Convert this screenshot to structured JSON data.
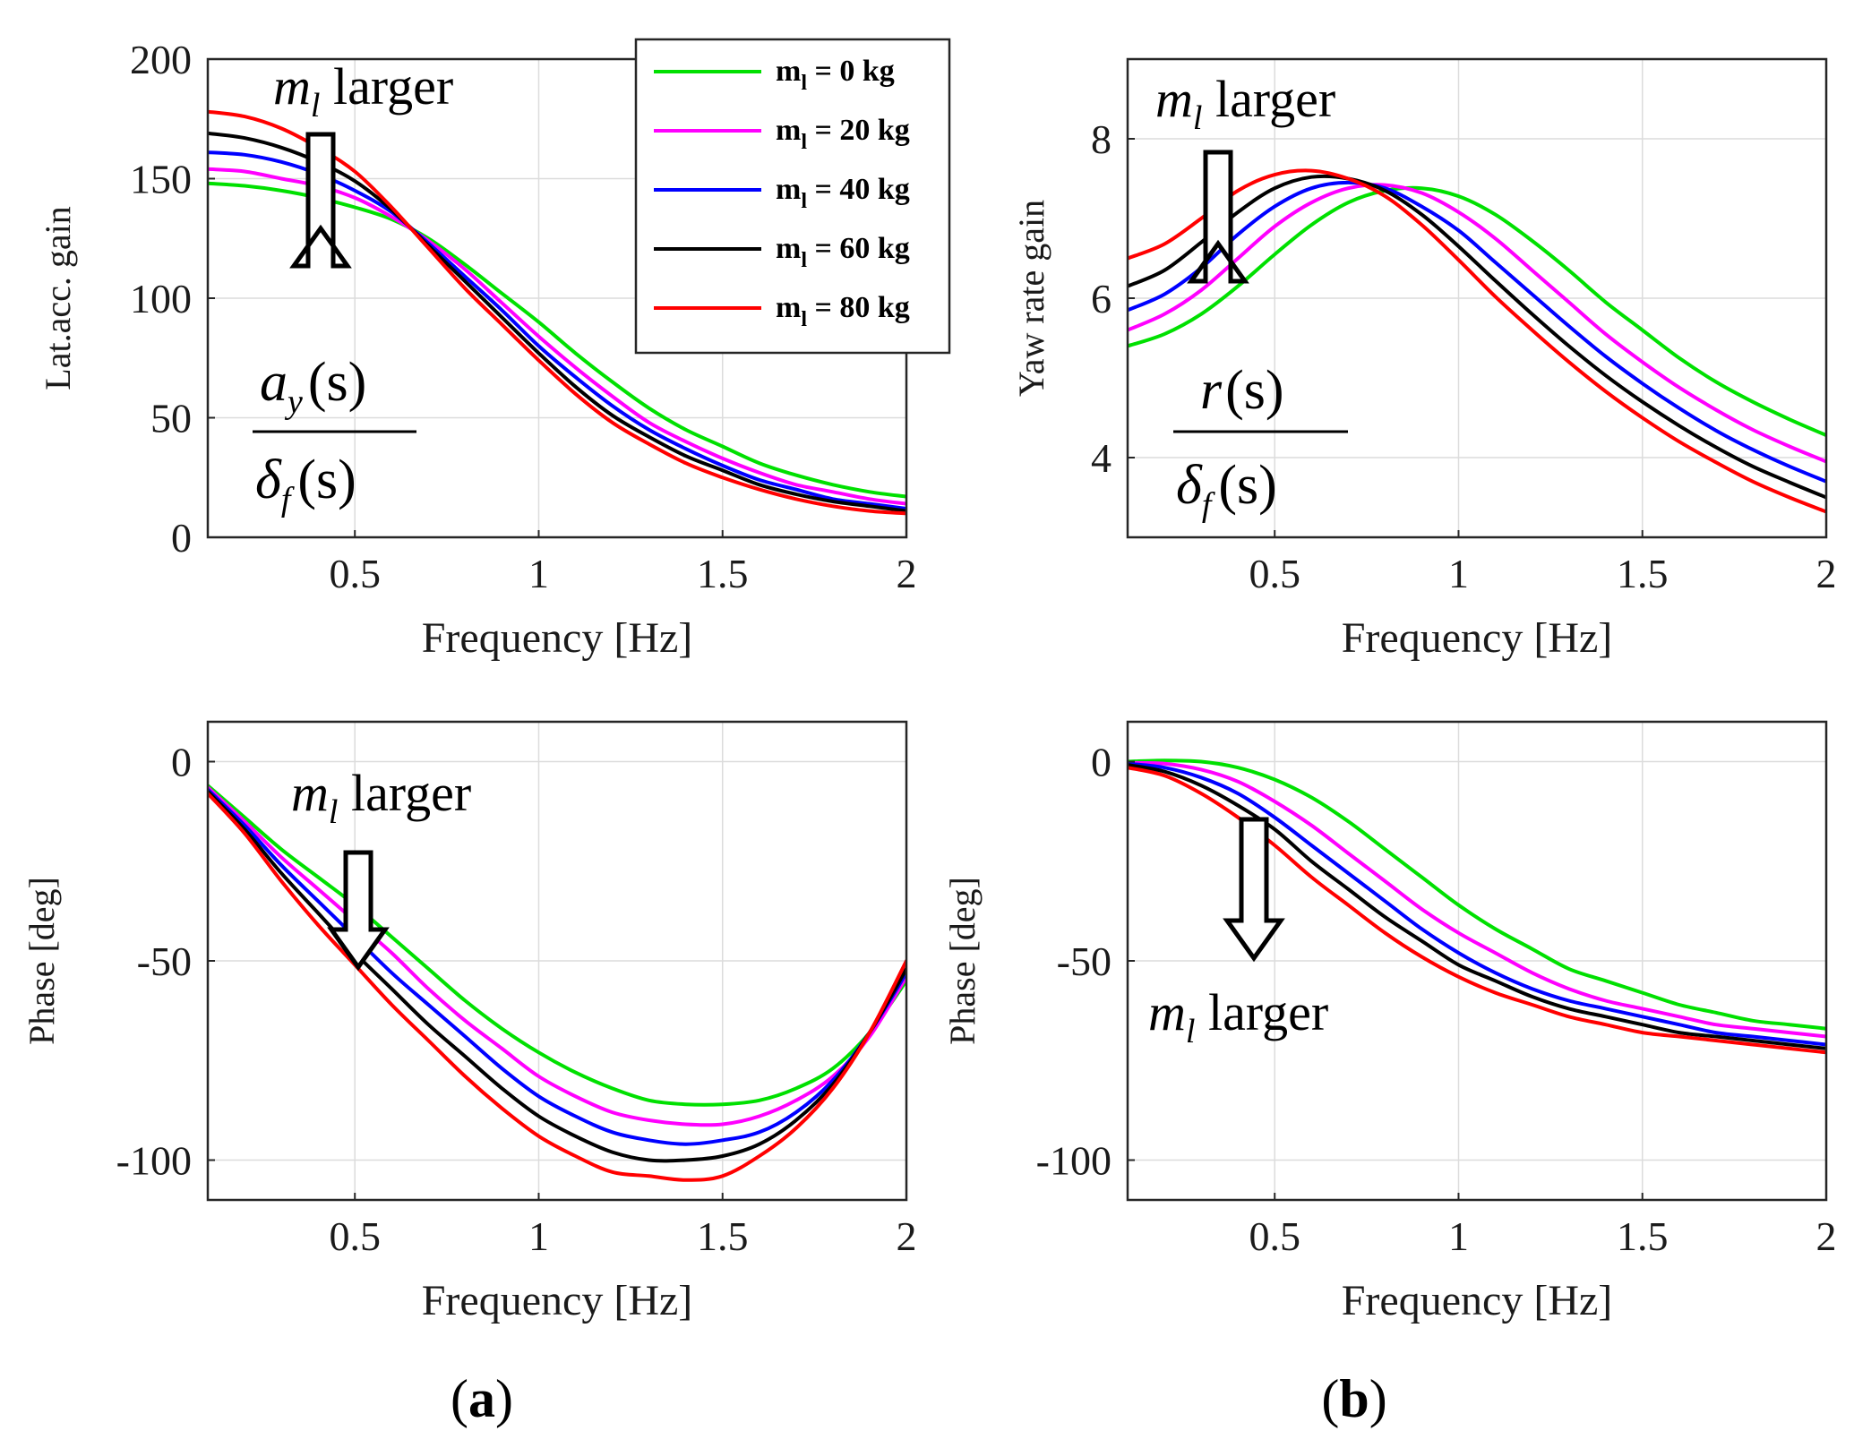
{
  "chart_data": [
    {
      "id": "top-left",
      "type": "line",
      "title": "",
      "xlabel": "Frequency [Hz]",
      "ylabel": "Lat.acc. gain",
      "xlim": [
        0.1,
        2
      ],
      "ylim": [
        0,
        200
      ],
      "xticks": [
        0.5,
        1,
        1.5,
        2
      ],
      "xtick_labels": [
        "0.5",
        "1",
        "1.5",
        "2"
      ],
      "yticks": [
        0,
        50,
        100,
        150,
        200
      ],
      "ytick_labels": [
        "0",
        "50",
        "100",
        "150",
        "200"
      ],
      "grid": true,
      "annotation": {
        "var": "m",
        "sub": "l",
        "text": " larger",
        "arrow": "up"
      },
      "formula": {
        "num": "a",
        "num_sub": "y",
        "num_arg": "(s)",
        "den": "δ",
        "den_sub": "f",
        "den_arg": "(s)"
      },
      "x": [
        0.1,
        0.2,
        0.3,
        0.4,
        0.5,
        0.6,
        0.7,
        0.8,
        0.9,
        1.0,
        1.1,
        1.2,
        1.3,
        1.4,
        1.5,
        1.6,
        1.7,
        1.8,
        1.9,
        2.0
      ],
      "series": [
        {
          "name": "m_l = 0 kg",
          "values": [
            148,
            147,
            145,
            142,
            138,
            133,
            125,
            114,
            102,
            90,
            77,
            65,
            54,
            45,
            38,
            31,
            26,
            22,
            19,
            17
          ]
        },
        {
          "name": "m_l = 20 kg",
          "values": [
            154,
            153,
            150,
            147,
            142,
            134,
            124,
            112,
            98,
            84,
            71,
            59,
            48,
            40,
            33,
            27,
            22,
            19,
            16,
            14
          ]
        },
        {
          "name": "m_l = 40 kg",
          "values": [
            161,
            160,
            157,
            152,
            145,
            136,
            123,
            109,
            95,
            80,
            67,
            55,
            45,
            37,
            30,
            24,
            20,
            16,
            14,
            12
          ]
        },
        {
          "name": "m_l = 60 kg",
          "values": [
            169,
            167,
            163,
            157,
            149,
            137,
            122,
            107,
            92,
            77,
            63,
            51,
            42,
            34,
            28,
            22,
            18,
            15,
            13,
            11
          ]
        },
        {
          "name": "m_l = 80 kg",
          "values": [
            178,
            176,
            171,
            163,
            153,
            138,
            121,
            104,
            89,
            74,
            60,
            48,
            39,
            31,
            25,
            20,
            16,
            13,
            11,
            10
          ]
        }
      ],
      "legend": {
        "placement": "top-right",
        "entries": [
          {
            "var": "m",
            "sub": "l",
            "text": " = 0 kg"
          },
          {
            "var": "m",
            "sub": "l",
            "text": " = 20 kg"
          },
          {
            "var": "m",
            "sub": "l",
            "text": " = 40 kg"
          },
          {
            "var": "m",
            "sub": "l",
            "text": " = 60 kg"
          },
          {
            "var": "m",
            "sub": "l",
            "text": " = 80 kg"
          }
        ]
      }
    },
    {
      "id": "top-right",
      "type": "line",
      "title": "",
      "xlabel": "Frequency [Hz]",
      "ylabel": "Yaw rate gain",
      "xlim": [
        0.1,
        2
      ],
      "ylim": [
        3,
        9
      ],
      "xticks": [
        0.5,
        1,
        1.5,
        2
      ],
      "xtick_labels": [
        "0.5",
        "1",
        "1.5",
        "2"
      ],
      "yticks": [
        4,
        6,
        8
      ],
      "ytick_labels": [
        "4",
        "6",
        "8"
      ],
      "grid": true,
      "annotation": {
        "var": "m",
        "sub": "l",
        "text": " larger",
        "arrow": "up"
      },
      "formula": {
        "num": "r",
        "num_sub": "",
        "num_arg": "(s)",
        "den": "δ",
        "den_sub": "f",
        "den_arg": "(s)"
      },
      "x": [
        0.1,
        0.2,
        0.3,
        0.4,
        0.5,
        0.6,
        0.7,
        0.8,
        0.9,
        1.0,
        1.1,
        1.2,
        1.3,
        1.4,
        1.5,
        1.6,
        1.7,
        1.8,
        1.9,
        2.0
      ],
      "series": [
        {
          "name": "m_l = 0 kg",
          "values": [
            5.4,
            5.55,
            5.8,
            6.15,
            6.55,
            6.92,
            7.2,
            7.35,
            7.38,
            7.28,
            7.05,
            6.72,
            6.35,
            5.95,
            5.6,
            5.25,
            4.95,
            4.7,
            4.48,
            4.28
          ]
        },
        {
          "name": "m_l = 20 kg",
          "values": [
            5.6,
            5.8,
            6.1,
            6.5,
            6.9,
            7.2,
            7.38,
            7.42,
            7.32,
            7.08,
            6.75,
            6.35,
            5.95,
            5.55,
            5.2,
            4.88,
            4.6,
            4.35,
            4.14,
            3.95
          ]
        },
        {
          "name": "m_l = 40 kg",
          "values": [
            5.85,
            6.05,
            6.38,
            6.8,
            7.15,
            7.38,
            7.45,
            7.38,
            7.15,
            6.85,
            6.45,
            6.05,
            5.65,
            5.27,
            4.93,
            4.62,
            4.34,
            4.1,
            3.89,
            3.7
          ]
        },
        {
          "name": "m_l = 60 kg",
          "values": [
            6.15,
            6.35,
            6.7,
            7.08,
            7.38,
            7.52,
            7.5,
            7.35,
            7.05,
            6.65,
            6.22,
            5.8,
            5.4,
            5.03,
            4.7,
            4.4,
            4.13,
            3.89,
            3.69,
            3.5
          ]
        },
        {
          "name": "m_l = 80 kg",
          "values": [
            6.5,
            6.68,
            7.0,
            7.35,
            7.55,
            7.6,
            7.5,
            7.28,
            6.92,
            6.48,
            6.02,
            5.6,
            5.2,
            4.83,
            4.5,
            4.2,
            3.94,
            3.7,
            3.5,
            3.32
          ]
        }
      ]
    },
    {
      "id": "bottom-left",
      "type": "line",
      "title": "",
      "xlabel": "Frequency [Hz]",
      "ylabel": "Phase [deg]",
      "xlim": [
        0.1,
        2
      ],
      "ylim": [
        -110,
        10
      ],
      "xticks": [
        0.5,
        1,
        1.5,
        2
      ],
      "xtick_labels": [
        "0.5",
        "1",
        "1.5",
        "2"
      ],
      "yticks": [
        -100,
        -50,
        0
      ],
      "ytick_labels": [
        "-100",
        "-50",
        "0"
      ],
      "grid": true,
      "annotation": {
        "var": "m",
        "sub": "l",
        "text": " larger",
        "arrow": "down"
      },
      "x": [
        0.1,
        0.2,
        0.3,
        0.4,
        0.5,
        0.6,
        0.7,
        0.8,
        0.9,
        1.0,
        1.1,
        1.2,
        1.3,
        1.4,
        1.5,
        1.6,
        1.7,
        1.8,
        1.9,
        2.0
      ],
      "series": [
        {
          "name": "m_l = 0 kg",
          "values": [
            -6,
            -14,
            -22,
            -29,
            -36,
            -44,
            -52,
            -60,
            -67,
            -73,
            -78,
            -82,
            -85,
            -86,
            -86,
            -85,
            -82,
            -77,
            -68,
            -55
          ]
        },
        {
          "name": "m_l = 20 kg",
          "values": [
            -6.5,
            -15,
            -24,
            -32,
            -40,
            -48,
            -57,
            -65,
            -72,
            -79,
            -84,
            -88,
            -90,
            -91,
            -91,
            -89,
            -85,
            -79,
            -69,
            -54
          ]
        },
        {
          "name": "m_l = 40 kg",
          "values": [
            -7,
            -16,
            -26,
            -35,
            -44,
            -53,
            -61,
            -69,
            -77,
            -84,
            -89,
            -93,
            -95,
            -96,
            -95,
            -93,
            -88,
            -80,
            -68,
            -53
          ]
        },
        {
          "name": "m_l = 60 kg",
          "values": [
            -7.5,
            -17,
            -28,
            -38,
            -48,
            -57,
            -66,
            -74,
            -82,
            -89,
            -94,
            -98,
            -100,
            -100,
            -99,
            -96,
            -90,
            -81,
            -68,
            -52
          ]
        },
        {
          "name": "m_l = 80 kg",
          "values": [
            -8,
            -18,
            -30,
            -41,
            -51,
            -61,
            -70,
            -79,
            -87,
            -94,
            -99,
            -103,
            -104,
            -105,
            -104,
            -99,
            -92,
            -82,
            -68,
            -50
          ]
        }
      ]
    },
    {
      "id": "bottom-right",
      "type": "line",
      "title": "",
      "xlabel": "Frequency [Hz]",
      "ylabel": "Phase [deg]",
      "xlim": [
        0.1,
        2
      ],
      "ylim": [
        -110,
        10
      ],
      "xticks": [
        0.5,
        1,
        1.5,
        2
      ],
      "xtick_labels": [
        "0.5",
        "1",
        "1.5",
        "2"
      ],
      "yticks": [
        -100,
        -50,
        0
      ],
      "ytick_labels": [
        "-100",
        "-50",
        "0"
      ],
      "grid": true,
      "annotation": {
        "var": "m",
        "sub": "l",
        "text": " larger",
        "arrow": "down"
      },
      "x": [
        0.1,
        0.2,
        0.3,
        0.4,
        0.5,
        0.6,
        0.7,
        0.8,
        0.9,
        1.0,
        1.1,
        1.2,
        1.3,
        1.4,
        1.5,
        1.6,
        1.7,
        1.8,
        1.9,
        2.0
      ],
      "series": [
        {
          "name": "m_l = 0 kg",
          "values": [
            0,
            0.3,
            0,
            -1.5,
            -4.5,
            -9,
            -15,
            -22,
            -29,
            -36,
            -42,
            -47,
            -52,
            -55,
            -58,
            -61,
            -63,
            -65,
            -66,
            -67
          ]
        },
        {
          "name": "m_l = 20 kg",
          "values": [
            -0.3,
            -0.5,
            -2,
            -5,
            -10,
            -16,
            -23,
            -30,
            -37,
            -43,
            -48,
            -53,
            -57,
            -60,
            -62,
            -64,
            -66,
            -67,
            -68,
            -69
          ]
        },
        {
          "name": "m_l = 40 kg",
          "values": [
            -0.5,
            -1.5,
            -4,
            -8,
            -14,
            -21,
            -28,
            -35,
            -42,
            -48,
            -53,
            -57,
            -60,
            -62,
            -64,
            -66,
            -68,
            -69,
            -70,
            -71
          ]
        },
        {
          "name": "m_l = 60 kg",
          "values": [
            -0.8,
            -2.5,
            -6,
            -11,
            -17,
            -25,
            -32,
            -39,
            -45,
            -51,
            -55,
            -59,
            -62,
            -64,
            -66,
            -68,
            -69,
            -70,
            -71,
            -72
          ]
        },
        {
          "name": "m_l = 80 kg",
          "values": [
            -1.5,
            -3.5,
            -8,
            -14,
            -21,
            -29,
            -36,
            -43,
            -49,
            -54,
            -58,
            -61,
            -64,
            -66,
            -68,
            -69,
            -70,
            -71,
            -72,
            -73
          ]
        }
      ]
    }
  ],
  "series_colors": [
    "#00e000",
    "#ff00ff",
    "#0000ff",
    "#000000",
    "#ff0000"
  ],
  "panel_labels": {
    "a": "a",
    "b": "b"
  }
}
